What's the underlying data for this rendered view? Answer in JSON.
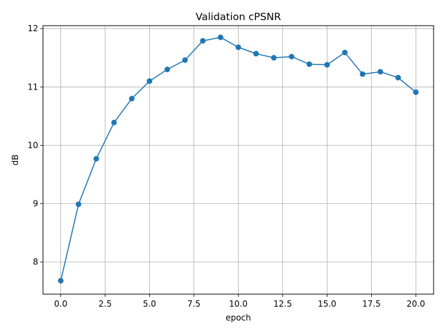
{
  "chart_data": {
    "type": "line",
    "title": "Validation cPSNR",
    "xlabel": "epoch",
    "ylabel": "dB",
    "xlim": [
      -1.0,
      21.0
    ],
    "ylim": [
      7.45,
      12.05
    ],
    "xticks": [
      0.0,
      2.5,
      5.0,
      7.5,
      10.0,
      12.5,
      15.0,
      17.5,
      20.0
    ],
    "xtick_labels": [
      "0.0",
      "2.5",
      "5.0",
      "7.5",
      "10.0",
      "12.5",
      "15.0",
      "17.5",
      "20.0"
    ],
    "yticks": [
      8,
      9,
      10,
      11,
      12
    ],
    "ytick_labels": [
      "8",
      "9",
      "10",
      "11",
      "12"
    ],
    "grid": true,
    "series": [
      {
        "color": "#1f77b4",
        "marker": "circle",
        "x": [
          0,
          1,
          2,
          3,
          4,
          5,
          6,
          7,
          8,
          9,
          10,
          11,
          12,
          13,
          14,
          15,
          16,
          17,
          18,
          19,
          20
        ],
        "y": [
          7.68,
          8.99,
          9.77,
          10.39,
          10.8,
          11.1,
          11.3,
          11.46,
          11.79,
          11.85,
          11.68,
          11.57,
          11.5,
          11.52,
          11.39,
          11.38,
          11.59,
          11.22,
          11.26,
          11.16,
          10.91
        ]
      }
    ]
  }
}
